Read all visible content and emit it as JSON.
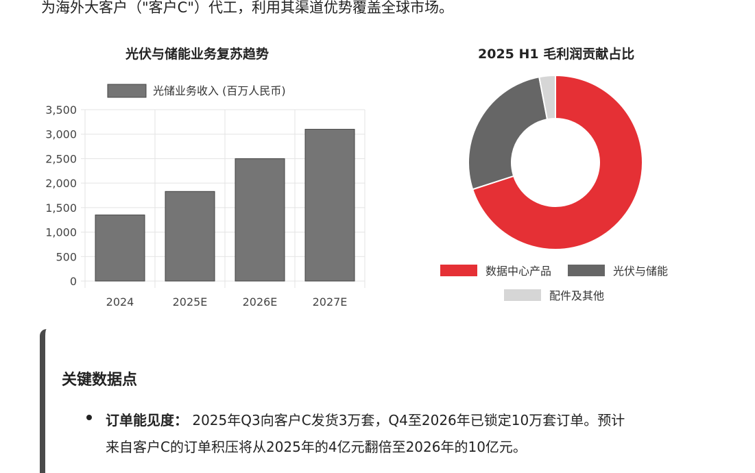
{
  "intro_text": "为海外大客户（\"客户C\"）代工，利用其渠道优势覆盖全球市场。",
  "colors": {
    "bar": "#757575",
    "red": "#e53035",
    "dark": "#666666",
    "light": "#d6d6d6"
  },
  "chart_data": [
    {
      "type": "bar",
      "title": "光伏与储能业务复苏趋势",
      "categories": [
        "2024",
        "2025E",
        "2026E",
        "2027E"
      ],
      "series": [
        {
          "name": "光储业务收入 (百万人民币)",
          "values": [
            1350,
            1830,
            2500,
            3100
          ]
        }
      ],
      "ylim": [
        0,
        3500
      ],
      "yticks": [
        "0",
        "500",
        "1,000",
        "1,500",
        "2,000",
        "2,500",
        "3,000",
        "3,500"
      ],
      "grid": true,
      "legend": "top"
    },
    {
      "type": "pie",
      "title": "2025 H1 毛利润贡献占比",
      "labels": [
        "数据中心产品",
        "光伏与储能",
        "配件及其他"
      ],
      "values": [
        70,
        27,
        3
      ],
      "legend": "bottom"
    }
  ],
  "callout": {
    "title": "关键数据点",
    "bullet_label": "订单能见度：",
    "bullet_line1": "2025年Q3向客户C发货3万套，Q4至2026年已锁定10万套订单。预计",
    "bullet_line2": "来自客户C的订单积压将从2025年的4亿元翻倍至2026年的10亿元。"
  }
}
